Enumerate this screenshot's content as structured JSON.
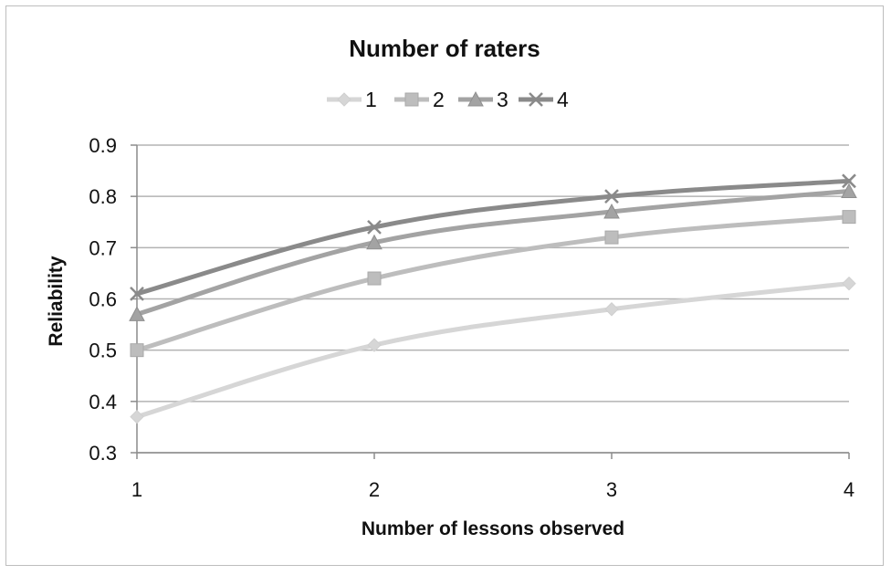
{
  "chart_data": {
    "type": "line",
    "title": "Number of raters",
    "xlabel": "Number of lessons observed",
    "ylabel": "Reliability",
    "categories": [
      "1",
      "2",
      "3",
      "4"
    ],
    "y_ticks": [
      "0.3",
      "0.4",
      "0.5",
      "0.6",
      "0.7",
      "0.8",
      "0.9"
    ],
    "ylim": [
      0.3,
      0.9
    ],
    "grid": true,
    "legend_position": "top",
    "series": [
      {
        "name": "1",
        "values": [
          0.37,
          0.51,
          0.58,
          0.63
        ],
        "color": "#d6d6d6",
        "marker": "diamond"
      },
      {
        "name": "2",
        "values": [
          0.5,
          0.64,
          0.72,
          0.76
        ],
        "color": "#bdbdbd",
        "marker": "square"
      },
      {
        "name": "3",
        "values": [
          0.57,
          0.71,
          0.77,
          0.81
        ],
        "color": "#a3a3a3",
        "marker": "triangle"
      },
      {
        "name": "4",
        "values": [
          0.61,
          0.74,
          0.8,
          0.83
        ],
        "color": "#8a8a8a",
        "marker": "x"
      }
    ]
  }
}
